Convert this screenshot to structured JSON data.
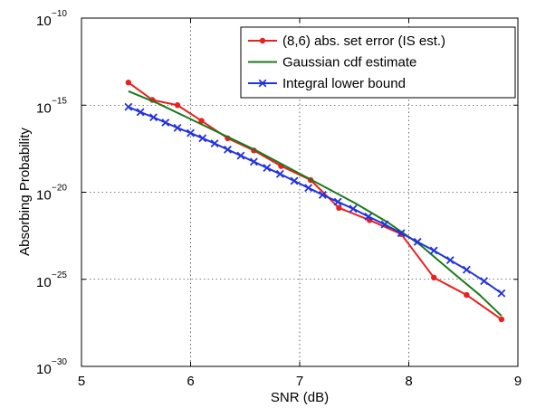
{
  "chart_data": {
    "type": "line",
    "title": "",
    "xlabel": "SNR (dB)",
    "ylabel": "Absorbing Probability",
    "xlim": [
      5,
      9
    ],
    "ylim_exponent": [
      -30,
      -10
    ],
    "y_scale": "log",
    "grid": true,
    "grid_style": "dotted",
    "legend_position": "top-right",
    "x_ticks": [
      "5",
      "6",
      "7",
      "8",
      "9"
    ],
    "y_ticks": [
      {
        "base": "10",
        "exp": "−10",
        "value": -10
      },
      {
        "base": "10",
        "exp": "−15",
        "value": -15
      },
      {
        "base": "10",
        "exp": "−20",
        "value": -20
      },
      {
        "base": "10",
        "exp": "−25",
        "value": -25
      },
      {
        "base": "10",
        "exp": "−30",
        "value": -30
      }
    ],
    "series": [
      {
        "name": "(8,6) abs. set error (IS est.)",
        "color": "#e8201e",
        "marker": "dot",
        "x": [
          5.43,
          5.65,
          5.88,
          6.1,
          6.34,
          6.58,
          6.83,
          7.1,
          7.36,
          7.64,
          7.93,
          8.23,
          8.53,
          8.85
        ],
        "log10_y": [
          -13.7,
          -14.7,
          -15.0,
          -15.9,
          -16.9,
          -17.6,
          -18.5,
          -19.3,
          -20.9,
          -21.6,
          -22.4,
          -24.9,
          -25.9,
          -27.3
        ]
      },
      {
        "name": "Gaussian cdf estimate",
        "color": "#1a7a1a",
        "marker": "none",
        "x": [
          5.43,
          5.7,
          6.0,
          6.3,
          6.6,
          6.9,
          7.2,
          7.5,
          7.8,
          8.1,
          8.4,
          8.65,
          8.85
        ],
        "log10_y": [
          -14.2,
          -14.9,
          -15.8,
          -16.7,
          -17.6,
          -18.6,
          -19.6,
          -20.6,
          -21.7,
          -23.0,
          -24.6,
          -25.9,
          -27.1
        ]
      },
      {
        "name": "Integral lower bound",
        "color": "#2233dd",
        "marker": "x",
        "x": [
          5.43,
          5.54,
          5.66,
          5.77,
          5.88,
          6.0,
          6.11,
          6.22,
          6.34,
          6.46,
          6.58,
          6.7,
          6.82,
          6.95,
          7.08,
          7.21,
          7.35,
          7.49,
          7.63,
          7.78,
          7.93,
          8.08,
          8.23,
          8.38,
          8.53,
          8.69,
          8.85
        ],
        "log10_y": [
          -15.1,
          -15.4,
          -15.7,
          -16.0,
          -16.3,
          -16.6,
          -16.9,
          -17.2,
          -17.55,
          -17.9,
          -18.25,
          -18.6,
          -18.95,
          -19.35,
          -19.75,
          -20.15,
          -20.55,
          -20.95,
          -21.4,
          -21.85,
          -22.35,
          -22.85,
          -23.35,
          -23.9,
          -24.45,
          -25.1,
          -25.8
        ]
      }
    ]
  }
}
